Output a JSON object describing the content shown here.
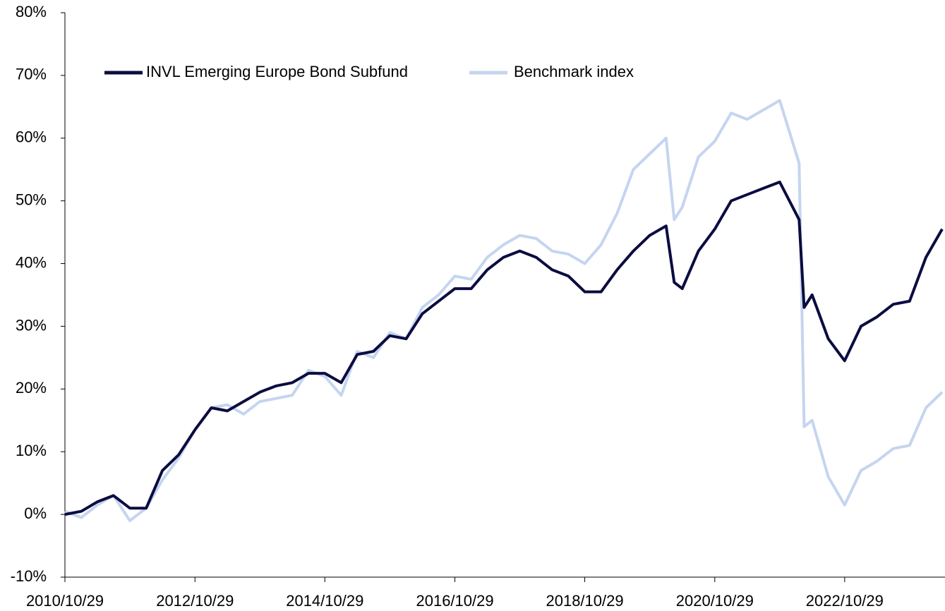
{
  "chart_data": {
    "type": "line",
    "x": [
      "2010/10/29",
      "2011/01/29",
      "2011/04/29",
      "2011/07/29",
      "2011/10/29",
      "2012/01/29",
      "2012/04/29",
      "2012/07/29",
      "2012/10/29",
      "2013/01/29",
      "2013/04/29",
      "2013/07/29",
      "2013/10/29",
      "2014/01/29",
      "2014/04/29",
      "2014/07/29",
      "2014/10/29",
      "2015/01/29",
      "2015/04/29",
      "2015/07/29",
      "2015/10/29",
      "2016/01/29",
      "2016/04/29",
      "2016/07/29",
      "2016/10/29",
      "2017/01/29",
      "2017/04/29",
      "2017/07/29",
      "2017/10/29",
      "2018/01/29",
      "2018/04/29",
      "2018/07/29",
      "2018/10/29",
      "2019/01/29",
      "2019/04/29",
      "2019/07/29",
      "2019/10/29",
      "2020/01/29",
      "2020/03/15",
      "2020/04/29",
      "2020/07/29",
      "2020/10/29",
      "2021/01/29",
      "2021/04/29",
      "2021/07/29",
      "2021/10/29",
      "2022/02/15",
      "2022/03/15",
      "2022/04/29",
      "2022/07/29",
      "2022/10/29",
      "2023/01/29",
      "2023/04/29",
      "2023/07/29",
      "2023/10/29",
      "2024/01/29",
      "2024/04/29"
    ],
    "series": [
      {
        "name": "INVL Emerging Europe Bond Subfund",
        "color": "#0b0c40",
        "values": [
          0,
          0.5,
          2,
          3,
          1,
          1,
          7,
          9.5,
          13.5,
          17,
          16.5,
          18,
          19.5,
          20.5,
          21,
          22.5,
          22.5,
          21,
          25.5,
          26,
          28.5,
          28,
          32,
          34,
          36,
          36,
          39,
          41,
          42,
          41,
          39,
          38,
          35.5,
          35.5,
          39,
          42,
          44.5,
          46,
          37,
          36,
          42,
          45.5,
          50,
          51,
          52,
          53,
          47,
          33,
          35,
          28,
          24.5,
          30,
          31.5,
          33.5,
          34,
          41,
          45.5
        ]
      },
      {
        "name": "Benchmark index",
        "color": "#c5d5f0",
        "values": [
          0.5,
          -0.5,
          1.5,
          3,
          -1,
          1,
          5.5,
          9,
          13.5,
          17,
          17.5,
          16,
          18,
          18.5,
          19,
          23,
          22,
          19,
          26,
          25,
          29,
          28,
          33,
          35,
          38,
          37.5,
          41,
          43,
          44.5,
          44,
          42,
          41.5,
          40,
          43,
          48,
          55,
          57.5,
          60,
          47,
          49,
          57,
          59.5,
          64,
          63,
          64.5,
          66,
          56,
          14,
          15,
          6,
          1.5,
          7,
          8.5,
          10.5,
          11,
          17,
          19.5
        ]
      }
    ],
    "xlim": [
      "2010/10/29",
      "2024/05/15"
    ],
    "xticks": [
      "2010/10/29",
      "2012/10/29",
      "2014/10/29",
      "2016/10/29",
      "2018/10/29",
      "2020/10/29",
      "2022/10/29"
    ],
    "ylim": [
      -10,
      80
    ],
    "yticks": [
      {
        "value": -10,
        "label": "-10%"
      },
      {
        "value": 0,
        "label": "0%"
      },
      {
        "value": 10,
        "label": "10%"
      },
      {
        "value": 20,
        "label": "20%"
      },
      {
        "value": 30,
        "label": "30%"
      },
      {
        "value": 40,
        "label": "40%"
      },
      {
        "value": 50,
        "label": "50%"
      },
      {
        "value": 60,
        "label": "60%"
      },
      {
        "value": 70,
        "label": "70%"
      },
      {
        "value": 80,
        "label": "80%"
      }
    ],
    "grid": false,
    "legend": "top-left"
  }
}
